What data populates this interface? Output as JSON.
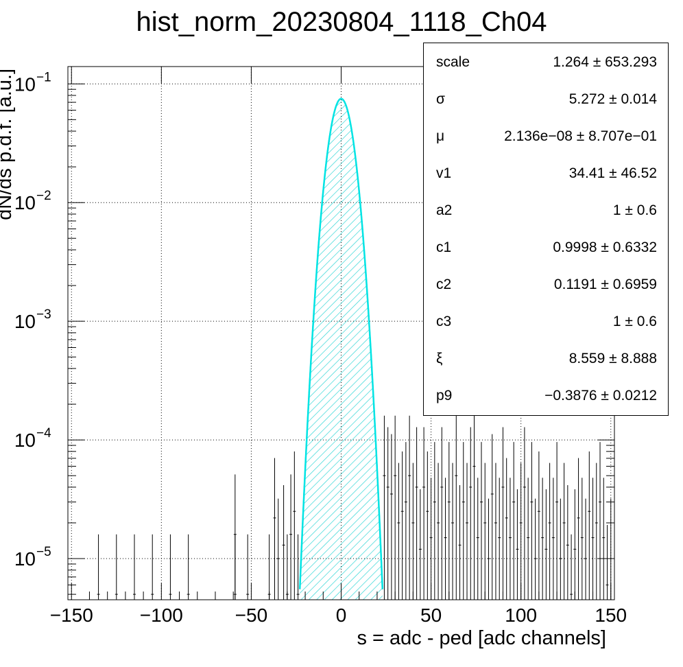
{
  "title": "hist_norm_20230804_1118_Ch04",
  "colors": {
    "histogram": "#000000",
    "fill_hatch": "#33d6d6",
    "fit_red": "#ff0000",
    "fit_cyan": "#00e5e5",
    "grid": "#000000"
  },
  "stats_box": {
    "rows": [
      {
        "name": "scale",
        "value": "1.264 ± 653.293"
      },
      {
        "name": "σ",
        "value": "5.272 ± 0.014"
      },
      {
        "name": "μ",
        "value": "2.136e−08 ± 8.707e−01"
      },
      {
        "name": "v1",
        "value": "34.41 ± 46.52"
      },
      {
        "name": "a2",
        "value": "1 ± 0.6"
      },
      {
        "name": "c1",
        "value": "0.9998 ± 0.6332"
      },
      {
        "name": "c2",
        "value": "0.1191 ± 0.6959"
      },
      {
        "name": "c3",
        "value": "1 ± 0.6"
      },
      {
        "name": "ξ",
        "value": "8.559 ± 8.888"
      },
      {
        "name": "p9",
        "value": "−0.3876 ± 0.0212"
      }
    ]
  },
  "chart_data": {
    "type": "histogram",
    "title": "hist_norm_20230804_1118_Ch04",
    "xlabel": "s = adc - ped [adc channels]",
    "ylabel": "dN/ds p.d.f. [a.u.]",
    "xlim": [
      -152,
      152
    ],
    "ylim": [
      4.5e-06,
      0.14
    ],
    "yscale": "log",
    "grid": true,
    "x_ticks": [
      -150,
      -100,
      -50,
      0,
      50,
      100,
      150
    ],
    "y_ticks": [
      {
        "value": 1e-05,
        "base": "10",
        "exp": "−5"
      },
      {
        "value": 0.0001,
        "base": "10",
        "exp": "−4"
      },
      {
        "value": 0.001,
        "base": "10",
        "exp": "−3"
      },
      {
        "value": 0.01,
        "base": "10",
        "exp": "−2"
      },
      {
        "value": 0.1,
        "base": "10",
        "exp": "−1"
      }
    ],
    "fit": {
      "sigma": 5.272,
      "mu": 0.0,
      "peak": 0.075,
      "range": [
        -23,
        23
      ]
    },
    "points": [
      {
        "x": -135,
        "y": 5e-06
      },
      {
        "x": -125,
        "y": 5e-06
      },
      {
        "x": -115,
        "y": 5e-06
      },
      {
        "x": -105,
        "y": 5e-06
      },
      {
        "x": -95,
        "y": 5e-06
      },
      {
        "x": -85,
        "y": 5e-06
      },
      {
        "x": -59,
        "y": 5e-06
      },
      {
        "x": -59,
        "y": 1.6e-05
      },
      {
        "x": -52,
        "y": 5e-06
      },
      {
        "x": -40,
        "y": 5e-06
      },
      {
        "x": -37,
        "y": 2.2e-05
      },
      {
        "x": -35,
        "y": 1e-05
      },
      {
        "x": -32,
        "y": 1.3e-05
      },
      {
        "x": -30,
        "y": 5e-06
      },
      {
        "x": -28,
        "y": 1.6e-05
      },
      {
        "x": -26,
        "y": 2.5e-05
      },
      {
        "x": -24,
        "y": 5e-06
      },
      {
        "x": 24,
        "y": 5e-05
      },
      {
        "x": 26,
        "y": 4e-05
      },
      {
        "x": 28,
        "y": 3.5e-05
      },
      {
        "x": 30,
        "y": 5e-05
      },
      {
        "x": 32,
        "y": 2e-05
      },
      {
        "x": 34,
        "y": 2.5e-05
      },
      {
        "x": 36,
        "y": 3e-05
      },
      {
        "x": 38,
        "y": 5e-05
      },
      {
        "x": 40,
        "y": 2e-05
      },
      {
        "x": 42,
        "y": 4e-05
      },
      {
        "x": 44,
        "y": 1.2e-05
      },
      {
        "x": 46,
        "y": 4e-05
      },
      {
        "x": 48,
        "y": 2.5e-05
      },
      {
        "x": 50,
        "y": 1.5e-05
      },
      {
        "x": 52,
        "y": 3e-05
      },
      {
        "x": 54,
        "y": 2e-05
      },
      {
        "x": 56,
        "y": 4e-05
      },
      {
        "x": 58,
        "y": 1.5e-05
      },
      {
        "x": 60,
        "y": 3e-05
      },
      {
        "x": 62,
        "y": 2e-05
      },
      {
        "x": 64,
        "y": 5e-05
      },
      {
        "x": 66,
        "y": 1.3e-05
      },
      {
        "x": 68,
        "y": 3e-05
      },
      {
        "x": 70,
        "y": 2e-05
      },
      {
        "x": 72,
        "y": 4e-05
      },
      {
        "x": 74,
        "y": 6e-05
      },
      {
        "x": 76,
        "y": 1.5e-05
      },
      {
        "x": 78,
        "y": 3e-05
      },
      {
        "x": 80,
        "y": 2e-05
      },
      {
        "x": 82,
        "y": 1e-05
      },
      {
        "x": 84,
        "y": 3.5e-05
      },
      {
        "x": 86,
        "y": 2e-05
      },
      {
        "x": 88,
        "y": 1.5e-05
      },
      {
        "x": 90,
        "y": 4e-05
      },
      {
        "x": 92,
        "y": 2.2e-05
      },
      {
        "x": 94,
        "y": 1.5e-05
      },
      {
        "x": 96,
        "y": 3e-05
      },
      {
        "x": 98,
        "y": 1.2e-05
      },
      {
        "x": 100,
        "y": 2e-05
      },
      {
        "x": 102,
        "y": 4e-05
      },
      {
        "x": 104,
        "y": 1.5e-05
      },
      {
        "x": 106,
        "y": 3e-05
      },
      {
        "x": 108,
        "y": 1e-05
      },
      {
        "x": 110,
        "y": 2.5e-05
      },
      {
        "x": 112,
        "y": 1.5e-05
      },
      {
        "x": 114,
        "y": 1.2e-05
      },
      {
        "x": 116,
        "y": 2e-05
      },
      {
        "x": 118,
        "y": 1.5e-05
      },
      {
        "x": 120,
        "y": 3e-05
      },
      {
        "x": 122,
        "y": 1e-05
      },
      {
        "x": 124,
        "y": 2e-05
      },
      {
        "x": 126,
        "y": 1.3e-05
      },
      {
        "x": 128,
        "y": 5e-06
      },
      {
        "x": 130,
        "y": 1.2e-05
      },
      {
        "x": 132,
        "y": 2.2e-05
      },
      {
        "x": 134,
        "y": 1.5e-05
      },
      {
        "x": 136,
        "y": 1e-05
      },
      {
        "x": 138,
        "y": 2.5e-05
      },
      {
        "x": 140,
        "y": 1.5e-05
      },
      {
        "x": 142,
        "y": 2e-05
      },
      {
        "x": 144,
        "y": 3e-05
      },
      {
        "x": 146,
        "y": 1.5e-05
      },
      {
        "x": 148,
        "y": 6e-06
      },
      {
        "x": 150,
        "y": 1e-05
      }
    ]
  }
}
